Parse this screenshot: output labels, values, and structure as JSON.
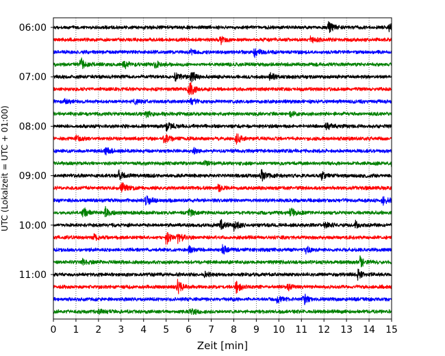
{
  "chart_data": {
    "type": "line",
    "title": "",
    "xlabel": "Zeit  [min]",
    "ylabel": "UTC (Lokalzeit = UTC + 01:00)",
    "xlim": [
      0,
      15
    ],
    "x_ticks": [
      0,
      1,
      2,
      3,
      4,
      5,
      6,
      7,
      8,
      9,
      10,
      11,
      12,
      13,
      14,
      15
    ],
    "x_grid": "dotted vertical lines at every minute",
    "y_tick_labels": [
      "06:00",
      "07:00",
      "08:00",
      "09:00",
      "10:00",
      "11:00"
    ],
    "trace_colors": [
      "#000000",
      "#ff0000",
      "#0000ff",
      "#008000"
    ],
    "traces": [
      {
        "start": "06:00",
        "color": "#000000",
        "events": [
          [
            12.2,
            1.0
          ],
          [
            14.9,
            0.6
          ]
        ]
      },
      {
        "start": "06:15",
        "color": "#ff0000",
        "events": [
          [
            7.4,
            0.7
          ],
          [
            11.4,
            0.5
          ]
        ]
      },
      {
        "start": "06:30",
        "color": "#0000ff",
        "events": [
          [
            8.9,
            0.8
          ],
          [
            6.1,
            0.4
          ]
        ]
      },
      {
        "start": "06:45",
        "color": "#008000",
        "events": [
          [
            1.2,
            1.0
          ],
          [
            3.1,
            0.8
          ],
          [
            4.5,
            0.5
          ]
        ]
      },
      {
        "start": "07:00",
        "color": "#000000",
        "events": [
          [
            5.4,
            0.9
          ],
          [
            6.1,
            0.9
          ],
          [
            9.6,
            0.8
          ]
        ]
      },
      {
        "start": "07:15",
        "color": "#ff0000",
        "events": [
          [
            6.0,
            1.6
          ]
        ]
      },
      {
        "start": "07:30",
        "color": "#0000ff",
        "events": [
          [
            0.5,
            0.4
          ],
          [
            3.6,
            0.4
          ],
          [
            6.1,
            0.5
          ]
        ]
      },
      {
        "start": "07:45",
        "color": "#008000",
        "events": [
          [
            4.1,
            0.5
          ],
          [
            10.5,
            0.4
          ]
        ]
      },
      {
        "start": "08:00",
        "color": "#000000",
        "events": [
          [
            5.0,
            1.3
          ],
          [
            12.1,
            0.5
          ]
        ]
      },
      {
        "start": "08:15",
        "color": "#ff0000",
        "events": [
          [
            4.9,
            0.9
          ],
          [
            8.1,
            0.9
          ],
          [
            1.0,
            0.5
          ]
        ]
      },
      {
        "start": "08:30",
        "color": "#0000ff",
        "events": [
          [
            2.3,
            0.6
          ],
          [
            6.2,
            0.4
          ]
        ]
      },
      {
        "start": "08:45",
        "color": "#008000",
        "events": [
          [
            15.0,
            0.8
          ],
          [
            6.7,
            0.4
          ]
        ]
      },
      {
        "start": "09:00",
        "color": "#000000",
        "events": [
          [
            2.9,
            0.8
          ],
          [
            9.2,
            1.1
          ],
          [
            11.9,
            0.6
          ]
        ]
      },
      {
        "start": "09:15",
        "color": "#ff0000",
        "events": [
          [
            3.0,
            1.0
          ],
          [
            7.3,
            0.5
          ]
        ]
      },
      {
        "start": "09:30",
        "color": "#0000ff",
        "events": [
          [
            4.1,
            0.8
          ],
          [
            14.6,
            0.8
          ]
        ]
      },
      {
        "start": "09:45",
        "color": "#008000",
        "events": [
          [
            1.3,
            0.9
          ],
          [
            2.3,
            0.8
          ],
          [
            10.5,
            0.9
          ],
          [
            6.0,
            0.6
          ]
        ]
      },
      {
        "start": "10:00",
        "color": "#000000",
        "events": [
          [
            7.4,
            0.9
          ],
          [
            8.0,
            0.8
          ],
          [
            12.0,
            0.6
          ],
          [
            13.4,
            0.6
          ]
        ]
      },
      {
        "start": "10:15",
        "color": "#ff0000",
        "events": [
          [
            5.0,
            1.2
          ],
          [
            5.5,
            0.9
          ],
          [
            1.8,
            0.5
          ]
        ]
      },
      {
        "start": "10:30",
        "color": "#0000ff",
        "events": [
          [
            7.5,
            0.8
          ],
          [
            6.0,
            0.7
          ],
          [
            11.2,
            0.5
          ]
        ]
      },
      {
        "start": "10:45",
        "color": "#008000",
        "events": [
          [
            13.6,
            0.9
          ],
          [
            1.3,
            0.4
          ]
        ]
      },
      {
        "start": "11:00",
        "color": "#000000",
        "events": [
          [
            13.5,
            0.7
          ],
          [
            6.7,
            0.4
          ]
        ]
      },
      {
        "start": "11:15",
        "color": "#ff0000",
        "events": [
          [
            5.5,
            1.1
          ],
          [
            8.1,
            0.9
          ],
          [
            10.4,
            0.5
          ]
        ]
      },
      {
        "start": "11:30",
        "color": "#0000ff",
        "events": [
          [
            11.1,
            0.8
          ],
          [
            9.9,
            0.6
          ]
        ]
      },
      {
        "start": "11:45",
        "color": "#008000",
        "events": [
          [
            2.0,
            0.4
          ],
          [
            6.1,
            0.6
          ]
        ]
      }
    ]
  }
}
